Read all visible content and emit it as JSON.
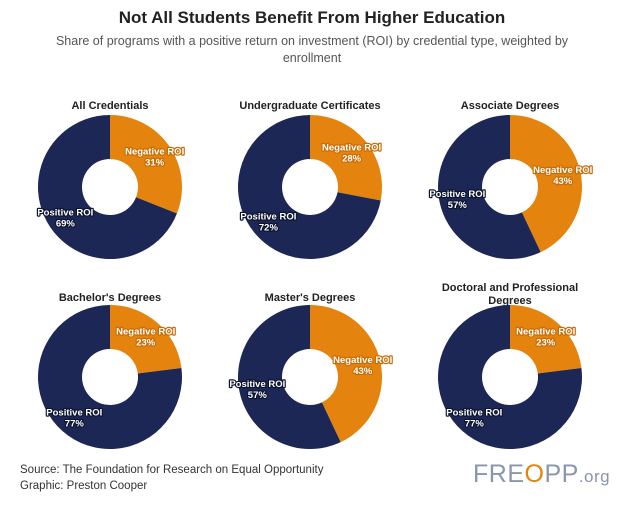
{
  "title": "Not All Students Benefit From Higher Education",
  "subtitle": "Share of programs with a positive return on investment (ROI) by credential type, weighted by enrollment",
  "source": {
    "line1": "Source: The Foundation for Research on Equal Opportunity",
    "line2": "Graphic: Preston Cooper"
  },
  "logo": {
    "part1": "FRE",
    "o": "O",
    "part2": "PP",
    "suffix": ".org"
  },
  "colors": {
    "negative": "#e5830f",
    "positive": "#1c2755",
    "negative_label_stroke": "#c86d05",
    "positive_label_stroke": "#0d1430"
  },
  "chart_data": {
    "type": "pie",
    "subtype": "donut",
    "series_labels": {
      "negative": "Negative ROI",
      "positive": "Positive ROI"
    },
    "panels": [
      {
        "title": [
          "All Credentials"
        ],
        "negative": 31,
        "positive": 69
      },
      {
        "title": [
          "Undergraduate Certificates"
        ],
        "negative": 28,
        "positive": 72
      },
      {
        "title": [
          "Associate Degrees"
        ],
        "negative": 43,
        "positive": 57
      },
      {
        "title": [
          "Bachelor's Degrees"
        ],
        "negative": 23,
        "positive": 77
      },
      {
        "title": [
          "Master's Degrees"
        ],
        "negative": 43,
        "positive": 57
      },
      {
        "title": [
          "Doctoral and Professional",
          "Degrees"
        ],
        "negative": 23,
        "positive": 77
      }
    ]
  }
}
